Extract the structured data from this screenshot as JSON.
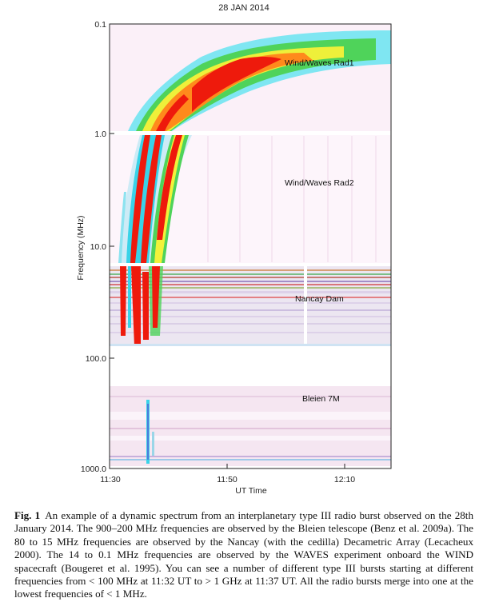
{
  "figure": {
    "title": "28 JAN 2014",
    "y_axis_label": "Frequency (MHz)",
    "x_axis_label": "UT Time",
    "y_ticks": [
      "0.1",
      "1.0",
      "10.0",
      "100.0",
      "1000.0"
    ],
    "x_ticks": [
      "11:30",
      "11:50",
      "12:10"
    ],
    "instrument_labels": [
      "Wind/Waves Rad1",
      "Wind/Waves Rad2",
      "Nancay Dam",
      "Bleien 7M"
    ],
    "colors": {
      "background": "#ffffff",
      "low_intensity": "#f3dcef",
      "cyan": "#39d3e8",
      "green": "#38d060",
      "yellow": "#f2f23a",
      "orange": "#ff8a1c",
      "red": "#ee1a0c"
    }
  },
  "caption": {
    "label": "Fig. 1",
    "text": "An example of a dynamic spectrum from an interplanetary type III radio burst observed on the 28th January 2014. The 900–200 MHz frequencies are observed by the Bleien telescope (Benz et al. 2009a). The 80 to 15 MHz frequencies are observed by the Nancay (with the cedilla) Decametric Array (Lecacheux 2000). The 14 to 0.1 MHz frequencies are observed by the WAVES experiment onboard the WIND spacecraft (Bougeret et al. 1995). You can see a number of different type III bursts starting at different frequencies from < 100 MHz at 11:32 UT to > 1 GHz at 11:37 UT. All the radio bursts merge into one at the lowest frequencies of < 1 MHz."
  }
}
